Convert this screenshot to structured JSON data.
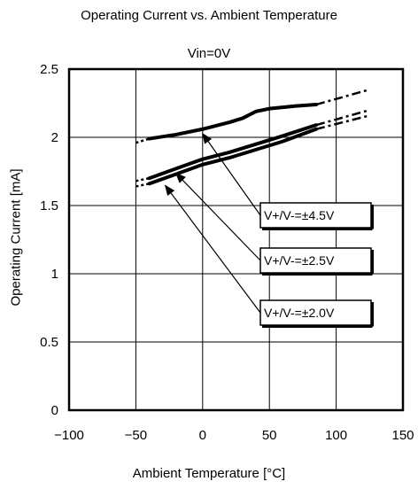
{
  "chart_data": {
    "type": "line",
    "title": "Operating Current vs. Ambient Temperature",
    "subtitle": "Vin=0V",
    "xlabel": "Ambient Temperature [°C]",
    "ylabel": "Operating Current [mA]",
    "xlim": [
      -100,
      150
    ],
    "ylim": [
      0,
      2.5
    ],
    "xticks": [
      -100,
      -50,
      0,
      50,
      100,
      150
    ],
    "xtick_labels": [
      "−100",
      "−50",
      "0",
      "50",
      "100",
      "150"
    ],
    "yticks": [
      0,
      0.5,
      1,
      1.5,
      2,
      2.5
    ],
    "ytick_labels": [
      "0",
      "0.5",
      "1",
      "1.5",
      "2",
      "2.5"
    ],
    "grid": true,
    "series": [
      {
        "name": "V+/V-=±4.5V",
        "measured": {
          "x": [
            -40,
            -20,
            0,
            20,
            30,
            40,
            50,
            70,
            85
          ],
          "y": [
            1.99,
            2.02,
            2.06,
            2.11,
            2.14,
            2.19,
            2.21,
            2.23,
            2.24
          ]
        },
        "extrapolated_low": {
          "x": [
            -50,
            -40
          ],
          "y": [
            1.96,
            1.99
          ]
        },
        "extrapolated_high": {
          "x": [
            85,
            125
          ],
          "y": [
            2.24,
            2.35
          ]
        }
      },
      {
        "name": "V+/V-=±2.5V",
        "measured": {
          "x": [
            -40,
            -20,
            0,
            20,
            40,
            60,
            85
          ],
          "y": [
            1.7,
            1.77,
            1.84,
            1.89,
            1.95,
            2.01,
            2.09
          ]
        },
        "extrapolated_low": {
          "x": [
            -50,
            -40
          ],
          "y": [
            1.68,
            1.7
          ]
        },
        "extrapolated_high": {
          "x": [
            85,
            125
          ],
          "y": [
            2.09,
            2.2
          ]
        }
      },
      {
        "name": "V+/V-=±2.0V",
        "measured": {
          "x": [
            -40,
            -20,
            0,
            20,
            40,
            60,
            85
          ],
          "y": [
            1.66,
            1.73,
            1.8,
            1.85,
            1.91,
            1.97,
            2.06
          ]
        },
        "extrapolated_low": {
          "x": [
            -50,
            -40
          ],
          "y": [
            1.64,
            1.66
          ]
        },
        "extrapolated_high": {
          "x": [
            85,
            125
          ],
          "y": [
            2.06,
            2.16
          ]
        }
      }
    ],
    "annotations": [
      {
        "label": "V+/V-=±4.5V",
        "points_to": {
          "x": 0,
          "y": 2.06
        }
      },
      {
        "label": "V+/V-=±2.5V",
        "points_to": {
          "x": -20,
          "y": 1.77
        }
      },
      {
        "label": "V+/V-=±2.0V",
        "points_to": {
          "x": -28,
          "y": 1.68
        }
      }
    ]
  }
}
